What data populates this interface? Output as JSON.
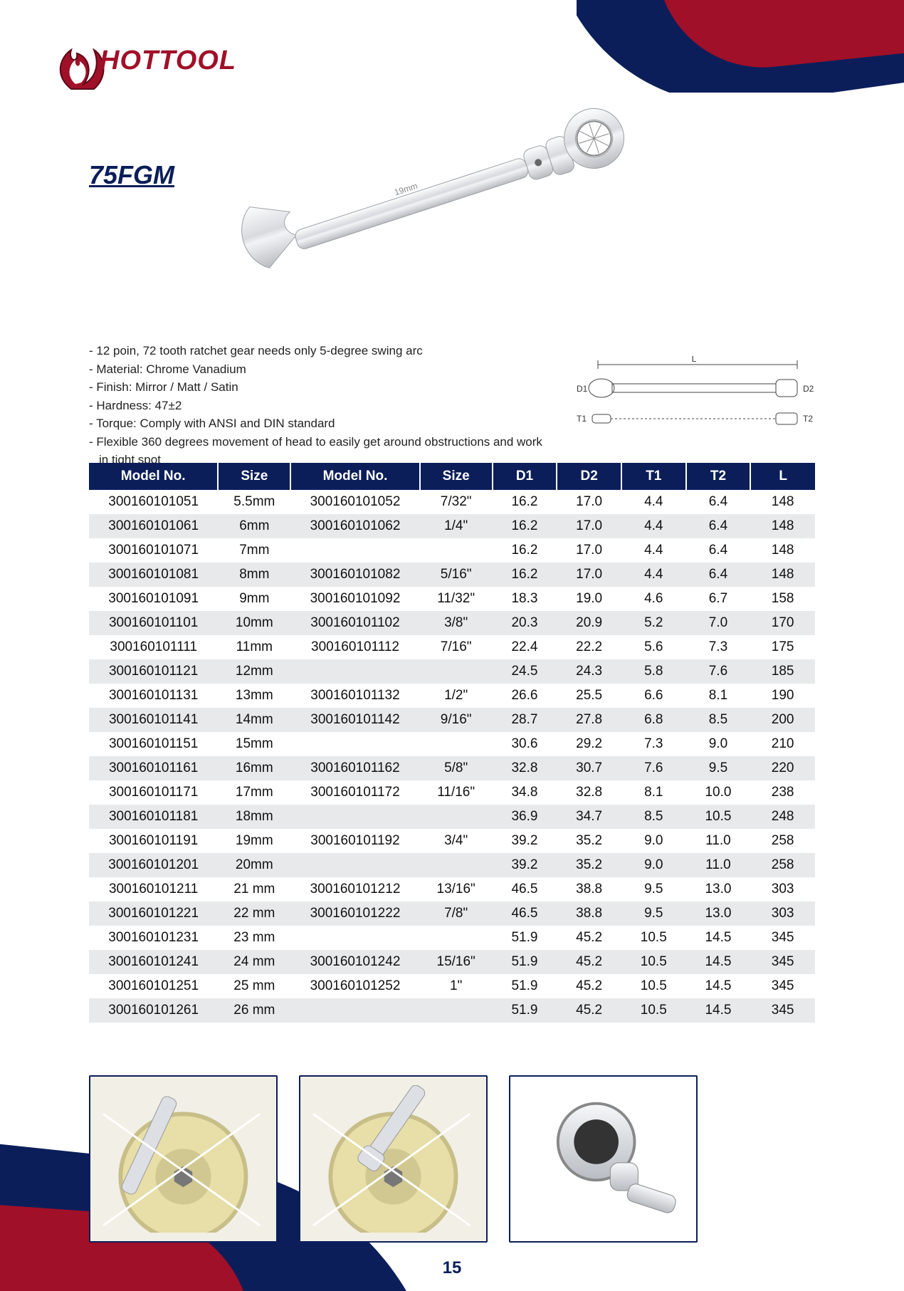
{
  "brand": "HOTTOOL",
  "product_code": "75FGM",
  "page_number": "15",
  "colors": {
    "navy": "#0b1e5a",
    "crimson": "#a01028",
    "row_alt": "#e8e9ea",
    "text": "#111111"
  },
  "specs": [
    "- 12 poin, 72 tooth ratchet gear needs only 5-degree swing arc",
    "- Material: Chrome Vanadium",
    "- Finish: Mirror / Matt / Satin",
    "- Hardness: 47±2",
    "- Torque: Comply with ANSI and DIN standard",
    "- Flexible 360 degrees movement of head to easily get around obstructions and work in tight spot"
  ],
  "diagram_labels": {
    "L": "L",
    "D1": "D1",
    "D2": "D2",
    "T1": "T1",
    "T2": "T2"
  },
  "table": {
    "columns": [
      "Model No.",
      "Size",
      "Model No.",
      "Size",
      "D1",
      "D2",
      "T1",
      "T2",
      "L"
    ],
    "col_widths": [
      "col-model1",
      "col-size1",
      "col-model2",
      "col-size2",
      "col-dim",
      "col-dim",
      "col-dim",
      "col-dim",
      "col-dim"
    ],
    "rows": [
      [
        "300160101051",
        "5.5mm",
        "300160101052",
        "7/32\"",
        "16.2",
        "17.0",
        "4.4",
        "6.4",
        "148"
      ],
      [
        "300160101061",
        "6mm",
        "300160101062",
        "1/4\"",
        "16.2",
        "17.0",
        "4.4",
        "6.4",
        "148"
      ],
      [
        "300160101071",
        "7mm",
        "",
        "",
        "16.2",
        "17.0",
        "4.4",
        "6.4",
        "148"
      ],
      [
        "300160101081",
        "8mm",
        "300160101082",
        "5/16\"",
        "16.2",
        "17.0",
        "4.4",
        "6.4",
        "148"
      ],
      [
        "300160101091",
        "9mm",
        "300160101092",
        "11/32\"",
        "18.3",
        "19.0",
        "4.6",
        "6.7",
        "158"
      ],
      [
        "300160101101",
        "10mm",
        "300160101102",
        "3/8\"",
        "20.3",
        "20.9",
        "5.2",
        "7.0",
        "170"
      ],
      [
        "300160101111",
        "11mm",
        "300160101112",
        "7/16\"",
        "22.4",
        "22.2",
        "5.6",
        "7.3",
        "175"
      ],
      [
        "300160101121",
        "12mm",
        "",
        "",
        "24.5",
        "24.3",
        "5.8",
        "7.6",
        "185"
      ],
      [
        "300160101131",
        "13mm",
        "300160101132",
        "1/2\"",
        "26.6",
        "25.5",
        "6.6",
        "8.1",
        "190"
      ],
      [
        "300160101141",
        "14mm",
        "300160101142",
        "9/16\"",
        "28.7",
        "27.8",
        "6.8",
        "8.5",
        "200"
      ],
      [
        "300160101151",
        "15mm",
        "",
        "",
        "30.6",
        "29.2",
        "7.3",
        "9.0",
        "210"
      ],
      [
        "300160101161",
        "16mm",
        "300160101162",
        "5/8\"",
        "32.8",
        "30.7",
        "7.6",
        "9.5",
        "220"
      ],
      [
        "300160101171",
        "17mm",
        "300160101172",
        "11/16\"",
        "34.8",
        "32.8",
        "8.1",
        "10.0",
        "238"
      ],
      [
        "300160101181",
        "18mm",
        "",
        "",
        "36.9",
        "34.7",
        "8.5",
        "10.5",
        "248"
      ],
      [
        "300160101191",
        "19mm",
        "300160101192",
        "3/4\"",
        "39.2",
        "35.2",
        "9.0",
        "11.0",
        "258"
      ],
      [
        "300160101201",
        "20mm",
        "",
        "",
        "39.2",
        "35.2",
        "9.0",
        "11.0",
        "258"
      ],
      [
        "300160101211",
        "21 mm",
        "300160101212",
        "13/16\"",
        "46.5",
        "38.8",
        "9.5",
        "13.0",
        "303"
      ],
      [
        "300160101221",
        "22 mm",
        "300160101222",
        "7/8\"",
        "46.5",
        "38.8",
        "9.5",
        "13.0",
        "303"
      ],
      [
        "300160101231",
        "23 mm",
        "",
        "",
        "51.9",
        "45.2",
        "10.5",
        "14.5",
        "345"
      ],
      [
        "300160101241",
        "24 mm",
        "300160101242",
        "15/16\"",
        "51.9",
        "45.2",
        "10.5",
        "14.5",
        "345"
      ],
      [
        "300160101251",
        "25 mm",
        "300160101252",
        "1\"",
        "51.9",
        "45.2",
        "10.5",
        "14.5",
        "345"
      ],
      [
        "300160101261",
        "26 mm",
        "",
        "",
        "51.9",
        "45.2",
        "10.5",
        "14.5",
        "345"
      ]
    ]
  },
  "thumbs": [
    "flex-wrench-in-socket-1",
    "flex-wrench-in-socket-2",
    "flex-head-detail"
  ]
}
